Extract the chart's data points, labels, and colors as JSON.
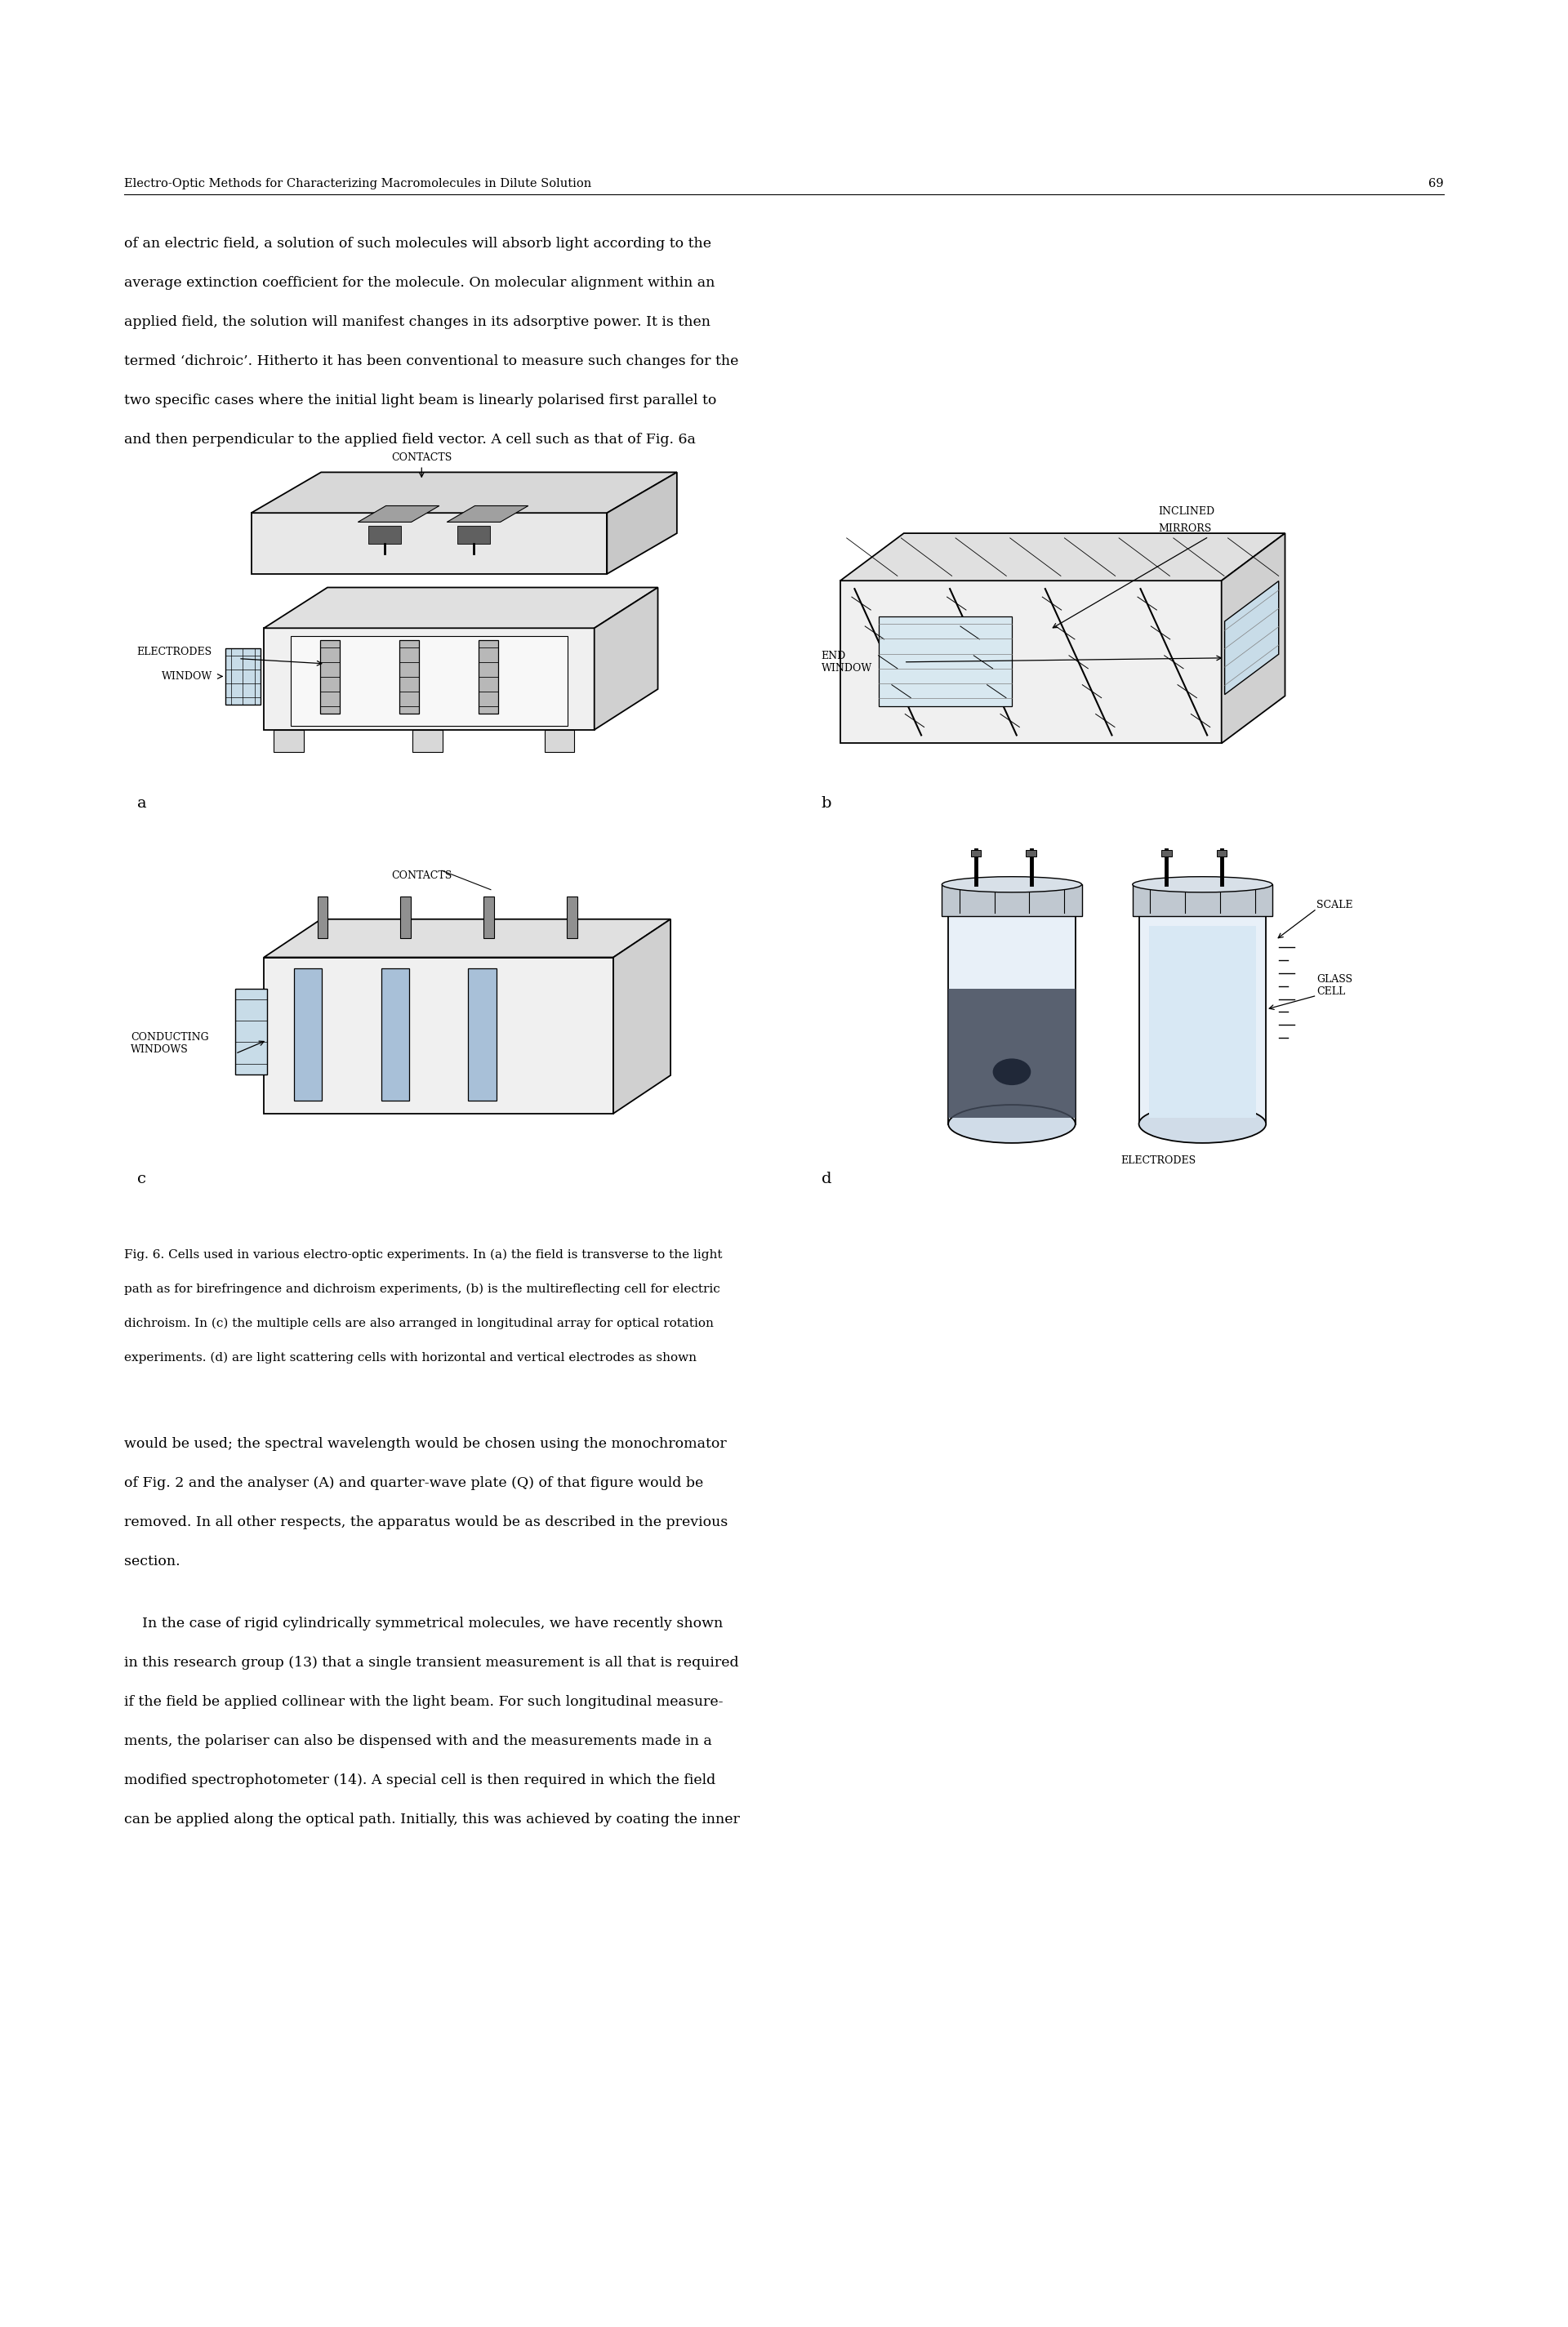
{
  "page_width": 19.2,
  "page_height": 28.5,
  "bg_color": "#ffffff",
  "header_text": "Electro-Optic Methods for Characterizing Macromolecules in Dilute Solution",
  "page_number": "69",
  "header_fontsize": 10.5,
  "body_fontsize": 12.5,
  "caption_fontsize": 11.0,
  "paragraph1": "of an electric field, a solution of such molecules will absorb light according to the\naverage extinction coefficient for the molecule. On molecular alignment within an\napplied field, the solution will manifest changes in its adsorptive power. It is then\ntermed ‘dichroic’. Hitherto it has been conventional to measure such changes for the\ntwo specific cases where the initial light beam is linearly polarised first parallel to\nand then perpendicular to the applied field vector. A cell such as that of Fig. 6a",
  "caption_text": "Fig. 6. Cells used in various electro-optic experiments. In (a) the field is transverse to the light\npath as for birefringence and dichroism experiments, (b) is the multireflecting cell for electric\ndichroism. In (c) the multiple cells are also arranged in longitudinal array for optical rotation\nexperiments. (d) are light scattering cells with horizontal and vertical electrodes as shown",
  "paragraph2": "would be used; the spectral wavelength would be chosen using the monochromator\nof Fig. 2 and the analyser (A) and quarter-wave plate (Q) of that figure would be\nremoved. In all other respects, the apparatus would be as described in the previous\nsection.",
  "paragraph3": "    In the case of rigid cylindrically symmetrical molecules, we have recently shown\nin this research group (13) that a single transient measurement is all that is required\nif the field be applied collinear with the light beam. For such longitudinal measure-\nments, the polariser can also be dispensed with and the measurements made in a\nmodified spectrophotometer (14). A special cell is then required in which the field\ncan be applied along the optical path. Initially, this was achieved by coating the inner"
}
